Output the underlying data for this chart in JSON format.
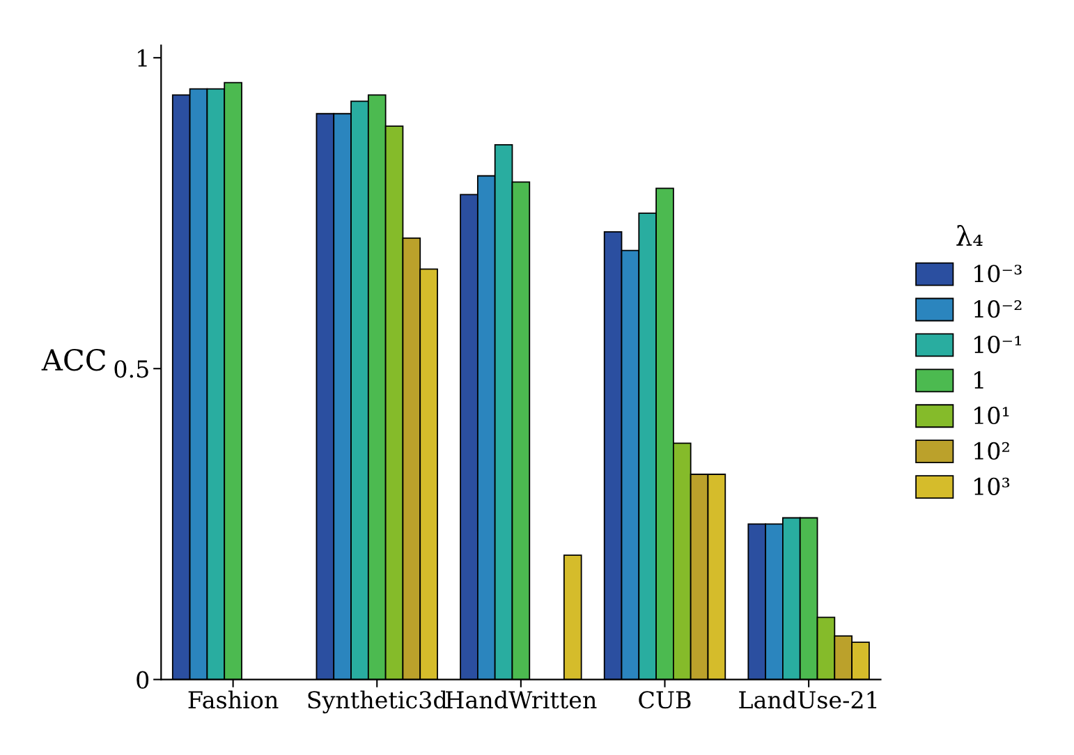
{
  "chart_data": {
    "type": "bar",
    "categories": [
      "Fashion",
      "Synthetic3d",
      "HandWritten",
      "CUB",
      "LandUse-21"
    ],
    "series": [
      {
        "name": "10⁻³",
        "color": "#2b4fa0",
        "values": [
          0.94,
          0.91,
          0.78,
          0.72,
          0.25
        ]
      },
      {
        "name": "10⁻²",
        "color": "#2b85be",
        "values": [
          0.95,
          0.91,
          0.81,
          0.69,
          0.25
        ]
      },
      {
        "name": "10⁻¹",
        "color": "#29ada0",
        "values": [
          0.95,
          0.93,
          0.86,
          0.75,
          0.26
        ]
      },
      {
        "name": "1",
        "color": "#4cba50",
        "values": [
          0.96,
          0.94,
          0.8,
          0.79,
          0.26
        ]
      },
      {
        "name": "10¹",
        "color": "#85bb2a",
        "values": [
          null,
          0.89,
          null,
          0.38,
          0.1
        ]
      },
      {
        "name": "10²",
        "color": "#bba12b",
        "values": [
          null,
          0.71,
          null,
          0.33,
          0.07
        ]
      },
      {
        "name": "10³",
        "color": "#d5bc2b",
        "values": [
          null,
          0.66,
          0.2,
          0.33,
          0.06
        ]
      }
    ],
    "ylabel": "ACC",
    "legend_title": "λ₄",
    "ylim": [
      0,
      1.02
    ],
    "yticks": [
      0,
      0.5,
      1
    ],
    "legend": "right"
  }
}
